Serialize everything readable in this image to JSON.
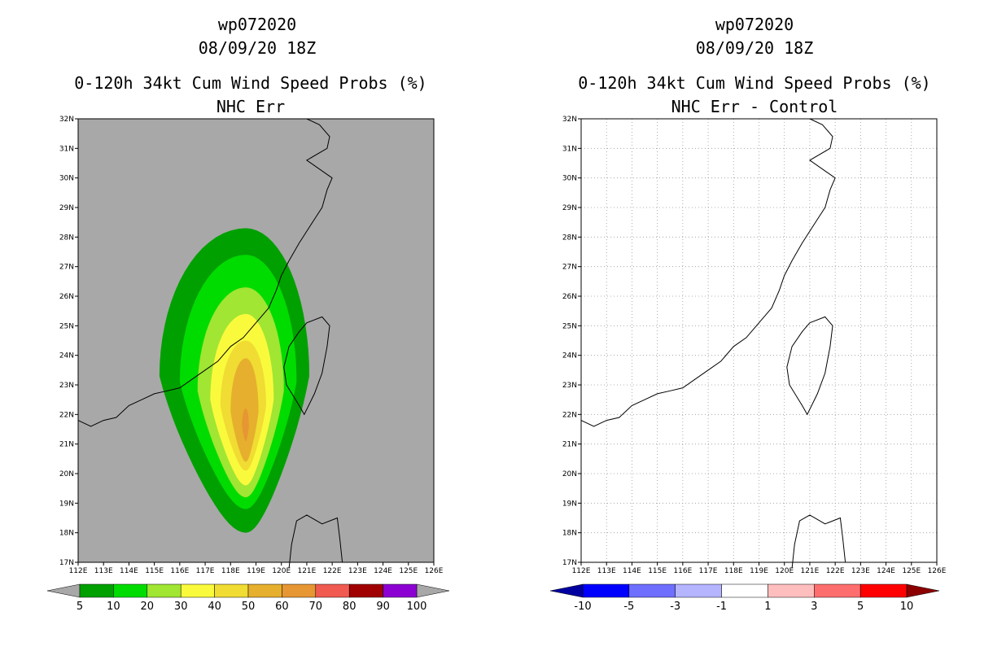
{
  "chart_data": [
    {
      "type": "heatmap",
      "name": "left",
      "title": [
        "wp072020",
        "08/09/20 18Z",
        "0-120h 34kt Cum Wind Speed Probs (%)",
        "NHC Err"
      ],
      "x_ticks": [
        "112E",
        "113E",
        "114E",
        "115E",
        "116E",
        "117E",
        "118E",
        "119E",
        "120E",
        "121E",
        "122E",
        "123E",
        "124E",
        "125E",
        "126E"
      ],
      "y_ticks": [
        "17N",
        "18N",
        "19N",
        "20N",
        "21N",
        "22N",
        "23N",
        "24N",
        "25N",
        "26N",
        "27N",
        "28N",
        "29N",
        "30N",
        "31N",
        "32N"
      ],
      "xlim": [
        112,
        126
      ],
      "ylim": [
        17,
        32
      ],
      "grid": false,
      "background_color": "#a8a8a8",
      "colorbar": {
        "labels": [
          "5",
          "10",
          "20",
          "30",
          "40",
          "50",
          "60",
          "70",
          "80",
          "90",
          "100"
        ],
        "colors": [
          "#00a000",
          "#00dc00",
          "#a0e632",
          "#fafa3c",
          "#f0dc32",
          "#e6af2d",
          "#e69632",
          "#f05a50",
          "#a00000",
          "#8c00d2"
        ],
        "arrow_color": "#a8a8a8"
      },
      "contours": [
        {
          "level": 5,
          "color": "#00a000",
          "center": [
            118.6,
            23.3
          ],
          "half_width": [
            3.4,
            2.5
          ],
          "half_height": [
            5.0,
            5.3
          ]
        },
        {
          "level": 10,
          "color": "#00dc00",
          "center": [
            118.6,
            23.1
          ],
          "half_width": [
            2.6,
            2.0
          ],
          "half_height": [
            4.3,
            4.3
          ]
        },
        {
          "level": 20,
          "color": "#a0e632",
          "center": [
            118.6,
            22.8
          ],
          "half_width": [
            1.9,
            1.5
          ],
          "half_height": [
            3.5,
            3.6
          ]
        },
        {
          "level": 30,
          "color": "#fafa3c",
          "center": [
            118.6,
            22.5
          ],
          "half_width": [
            1.4,
            1.1
          ],
          "half_height": [
            2.9,
            2.9
          ]
        },
        {
          "level": 40,
          "color": "#f0dc32",
          "center": [
            118.6,
            22.3
          ],
          "half_width": [
            1.0,
            0.8
          ],
          "half_height": [
            2.2,
            2.2
          ]
        },
        {
          "level": 50,
          "color": "#e6af2d",
          "center": [
            118.6,
            22.1
          ],
          "half_width": [
            0.6,
            0.5
          ],
          "half_height": [
            1.8,
            1.7
          ]
        },
        {
          "level": 60,
          "color": "#e69632",
          "center": [
            118.6,
            21.6
          ],
          "half_width": [
            0.15,
            0.12
          ],
          "half_height": [
            0.6,
            0.5
          ]
        }
      ]
    },
    {
      "type": "heatmap",
      "name": "right",
      "title": [
        "wp072020",
        "08/09/20 18Z",
        "0-120h 34kt Cum Wind Speed Probs (%)",
        "NHC Err - Control"
      ],
      "x_ticks": [
        "112E",
        "113E",
        "114E",
        "115E",
        "116E",
        "117E",
        "118E",
        "119E",
        "120E",
        "121E",
        "122E",
        "123E",
        "124E",
        "125E",
        "126E"
      ],
      "y_ticks": [
        "17N",
        "18N",
        "19N",
        "20N",
        "21N",
        "22N",
        "23N",
        "24N",
        "25N",
        "26N",
        "27N",
        "28N",
        "29N",
        "30N",
        "31N",
        "32N"
      ],
      "xlim": [
        112,
        126
      ],
      "ylim": [
        17,
        32
      ],
      "grid": true,
      "background_color": "#ffffff",
      "colorbar": {
        "labels": [
          "-10",
          "-5",
          "-3",
          "-1",
          "1",
          "3",
          "5",
          "10"
        ],
        "colors": [
          "#0000ff",
          "#6e6eff",
          "#b4b4ff",
          "#ffffff",
          "#ffbebe",
          "#ff6e6e",
          "#ff0000"
        ],
        "left_arrow_color": "#0000a0",
        "right_arrow_color": "#8c0000"
      }
    }
  ],
  "coastline_lonlat": [
    [
      112.0,
      21.8
    ],
    [
      112.5,
      21.6
    ],
    [
      113.0,
      21.8
    ],
    [
      113.5,
      21.9
    ],
    [
      114.0,
      22.3
    ],
    [
      114.5,
      22.5
    ],
    [
      115.0,
      22.7
    ],
    [
      115.5,
      22.8
    ],
    [
      116.0,
      22.9
    ],
    [
      116.5,
      23.2
    ],
    [
      117.0,
      23.5
    ],
    [
      117.5,
      23.8
    ],
    [
      118.0,
      24.3
    ],
    [
      118.5,
      24.6
    ],
    [
      119.0,
      25.1
    ],
    [
      119.5,
      25.6
    ],
    [
      119.8,
      26.2
    ],
    [
      120.0,
      26.7
    ],
    [
      120.3,
      27.2
    ],
    [
      120.7,
      27.8
    ],
    [
      121.0,
      28.2
    ],
    [
      121.3,
      28.6
    ],
    [
      121.6,
      29.0
    ],
    [
      121.8,
      29.6
    ],
    [
      122.0,
      30.0
    ],
    [
      121.5,
      30.3
    ],
    [
      121.0,
      30.6
    ],
    [
      121.8,
      31.0
    ],
    [
      121.9,
      31.4
    ],
    [
      121.5,
      31.8
    ],
    [
      121.0,
      32.0
    ]
  ],
  "taiwan_lonlat": [
    [
      121.0,
      25.1
    ],
    [
      121.6,
      25.3
    ],
    [
      121.9,
      25.0
    ],
    [
      121.8,
      24.3
    ],
    [
      121.6,
      23.4
    ],
    [
      121.3,
      22.7
    ],
    [
      120.9,
      22.0
    ],
    [
      120.7,
      22.3
    ],
    [
      120.2,
      23.0
    ],
    [
      120.1,
      23.6
    ],
    [
      120.3,
      24.3
    ],
    [
      120.7,
      24.8
    ],
    [
      121.0,
      25.1
    ]
  ],
  "luzon_lonlat": [
    [
      120.3,
      16.8
    ],
    [
      120.4,
      17.6
    ],
    [
      120.6,
      18.4
    ],
    [
      121.0,
      18.6
    ],
    [
      121.6,
      18.3
    ],
    [
      122.2,
      18.5
    ],
    [
      122.3,
      17.8
    ],
    [
      122.4,
      17.0
    ]
  ]
}
